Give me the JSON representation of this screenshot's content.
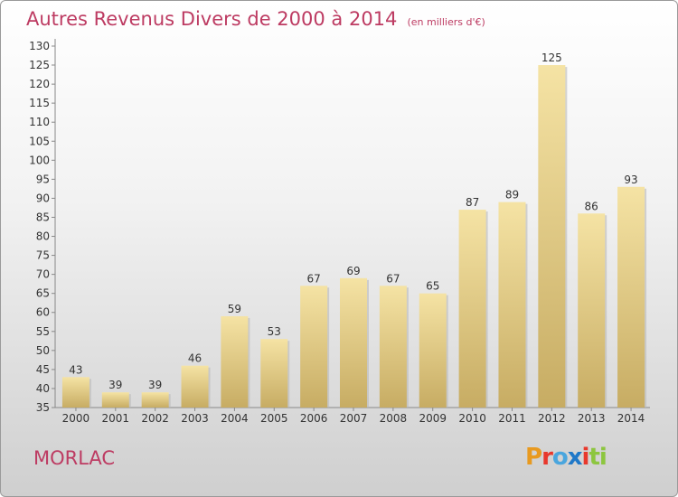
{
  "header": {
    "title": "Autres Revenus Divers de 2000 à 2014",
    "unit": "(en milliers d'€)"
  },
  "footer": {
    "city": "MORLAC",
    "logo_letters": [
      "P",
      "r",
      "o",
      "x",
      "i",
      "t",
      "i"
    ],
    "logo_colors": [
      "#e89a20",
      "#e8382c",
      "#4aa6de",
      "#1f78c8",
      "#e8382c",
      "#8dc63f",
      "#8dc63f"
    ]
  },
  "colors": {
    "bar_top": "#f5e3a4",
    "bar_bottom": "#c7ac63",
    "axis_text": "#333333",
    "title": "#bd3b62"
  },
  "chart_data": {
    "type": "bar",
    "title": "Autres Revenus Divers de 2000 à 2014",
    "subtitle": "(en milliers d'€)",
    "categories": [
      "2000",
      "2001",
      "2002",
      "2003",
      "2004",
      "2005",
      "2006",
      "2007",
      "2008",
      "2009",
      "2010",
      "2011",
      "2012",
      "2013",
      "2014"
    ],
    "values": [
      43,
      39,
      39,
      46,
      59,
      53,
      67,
      69,
      67,
      65,
      87,
      89,
      125,
      86,
      93
    ],
    "ylim": [
      35,
      130
    ],
    "ytick_step": 5,
    "grid": false,
    "data_labels": true
  }
}
